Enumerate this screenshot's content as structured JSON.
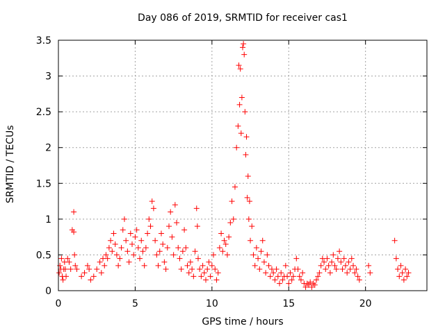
{
  "chart_data": {
    "type": "scatter",
    "title": "Day 086 of 2019, SRMTID for receiver cas1",
    "xlabel": "GPS time / hours",
    "ylabel": "SRMTID / TECUs",
    "xlim": [
      0,
      24
    ],
    "ylim": [
      0,
      3.5
    ],
    "x_ticks": [
      0,
      5,
      10,
      15,
      20
    ],
    "x_tick_labels": [
      "0",
      "5",
      "10",
      "15",
      "20"
    ],
    "y_ticks": [
      0,
      0.5,
      1,
      1.5,
      2,
      2.5,
      3,
      3.5
    ],
    "y_tick_labels": [
      "0",
      "0.5",
      "1",
      "1.5",
      "2",
      "2.5",
      "3",
      "3.5"
    ],
    "grid": true,
    "marker": "+",
    "series": [
      {
        "name": "SRMTID",
        "color": "#ff0000",
        "points": [
          [
            0.05,
            0.25
          ],
          [
            0.1,
            0.35
          ],
          [
            0.15,
            0.3
          ],
          [
            0.2,
            0.45
          ],
          [
            0.25,
            0.2
          ],
          [
            0.3,
            0.15
          ],
          [
            0.35,
            0.3
          ],
          [
            0.4,
            0.4
          ],
          [
            0.45,
            0.3
          ],
          [
            0.5,
            0.2
          ],
          [
            0.6,
            0.45
          ],
          [
            0.7,
            0.4
          ],
          [
            0.8,
            0.3
          ],
          [
            0.9,
            0.85
          ],
          [
            1.0,
            0.82
          ],
          [
            1.0,
            1.1
          ],
          [
            1.05,
            0.5
          ],
          [
            1.1,
            0.35
          ],
          [
            1.2,
            0.3
          ],
          [
            1.5,
            0.2
          ],
          [
            1.7,
            0.25
          ],
          [
            1.9,
            0.35
          ],
          [
            2.0,
            0.3
          ],
          [
            2.1,
            0.15
          ],
          [
            2.3,
            0.2
          ],
          [
            2.5,
            0.3
          ],
          [
            2.7,
            0.4
          ],
          [
            2.8,
            0.25
          ],
          [
            2.9,
            0.45
          ],
          [
            3.0,
            0.35
          ],
          [
            3.1,
            0.5
          ],
          [
            3.2,
            0.45
          ],
          [
            3.3,
            0.6
          ],
          [
            3.4,
            0.7
          ],
          [
            3.5,
            0.55
          ],
          [
            3.6,
            0.8
          ],
          [
            3.7,
            0.65
          ],
          [
            3.8,
            0.5
          ],
          [
            3.9,
            0.35
          ],
          [
            4.0,
            0.45
          ],
          [
            4.1,
            0.6
          ],
          [
            4.2,
            0.85
          ],
          [
            4.3,
            1.0
          ],
          [
            4.4,
            0.7
          ],
          [
            4.5,
            0.55
          ],
          [
            4.6,
            0.4
          ],
          [
            4.7,
            0.8
          ],
          [
            4.8,
            0.65
          ],
          [
            4.9,
            0.5
          ],
          [
            5.0,
            0.75
          ],
          [
            5.1,
            0.85
          ],
          [
            5.2,
            0.6
          ],
          [
            5.3,
            0.45
          ],
          [
            5.4,
            0.7
          ],
          [
            5.5,
            0.55
          ],
          [
            5.6,
            0.35
          ],
          [
            5.7,
            0.6
          ],
          [
            5.8,
            0.8
          ],
          [
            5.9,
            1.0
          ],
          [
            6.0,
            0.9
          ],
          [
            6.1,
            1.25
          ],
          [
            6.2,
            1.15
          ],
          [
            6.3,
            0.7
          ],
          [
            6.4,
            0.5
          ],
          [
            6.5,
            0.35
          ],
          [
            6.6,
            0.55
          ],
          [
            6.7,
            0.8
          ],
          [
            6.8,
            0.65
          ],
          [
            6.9,
            0.4
          ],
          [
            7.0,
            0.3
          ],
          [
            7.1,
            0.6
          ],
          [
            7.2,
            0.9
          ],
          [
            7.3,
            1.1
          ],
          [
            7.4,
            0.75
          ],
          [
            7.5,
            0.5
          ],
          [
            7.6,
            1.2
          ],
          [
            7.7,
            0.95
          ],
          [
            7.8,
            0.6
          ],
          [
            7.9,
            0.45
          ],
          [
            8.0,
            0.3
          ],
          [
            8.1,
            0.55
          ],
          [
            8.2,
            0.85
          ],
          [
            8.3,
            0.6
          ],
          [
            8.4,
            0.35
          ],
          [
            8.5,
            0.25
          ],
          [
            8.6,
            0.4
          ],
          [
            8.7,
            0.3
          ],
          [
            8.8,
            0.2
          ],
          [
            8.9,
            0.55
          ],
          [
            9.0,
            1.15
          ],
          [
            9.05,
            0.9
          ],
          [
            9.1,
            0.45
          ],
          [
            9.2,
            0.3
          ],
          [
            9.3,
            0.2
          ],
          [
            9.4,
            0.35
          ],
          [
            9.5,
            0.25
          ],
          [
            9.6,
            0.15
          ],
          [
            9.7,
            0.3
          ],
          [
            9.8,
            0.4
          ],
          [
            9.9,
            0.2
          ],
          [
            10.0,
            0.35
          ],
          [
            10.1,
            0.5
          ],
          [
            10.2,
            0.3
          ],
          [
            10.3,
            0.15
          ],
          [
            10.4,
            0.25
          ],
          [
            10.5,
            0.6
          ],
          [
            10.6,
            0.8
          ],
          [
            10.7,
            0.55
          ],
          [
            10.8,
            0.7
          ],
          [
            10.9,
            0.65
          ],
          [
            11.0,
            0.5
          ],
          [
            11.1,
            0.75
          ],
          [
            11.2,
            0.95
          ],
          [
            11.3,
            1.25
          ],
          [
            11.4,
            1.0
          ],
          [
            11.5,
            1.45
          ],
          [
            11.6,
            2.0
          ],
          [
            11.7,
            2.3
          ],
          [
            11.75,
            3.15
          ],
          [
            11.8,
            2.6
          ],
          [
            11.85,
            3.1
          ],
          [
            11.9,
            2.2
          ],
          [
            11.95,
            2.7
          ],
          [
            12.0,
            3.4
          ],
          [
            12.05,
            3.45
          ],
          [
            12.1,
            3.3
          ],
          [
            12.15,
            2.5
          ],
          [
            12.2,
            1.9
          ],
          [
            12.25,
            2.15
          ],
          [
            12.3,
            1.3
          ],
          [
            12.35,
            1.6
          ],
          [
            12.4,
            1.0
          ],
          [
            12.45,
            1.25
          ],
          [
            12.5,
            0.7
          ],
          [
            12.6,
            0.9
          ],
          [
            12.7,
            0.5
          ],
          [
            12.8,
            0.35
          ],
          [
            12.9,
            0.6
          ],
          [
            13.0,
            0.45
          ],
          [
            13.1,
            0.3
          ],
          [
            13.2,
            0.55
          ],
          [
            13.3,
            0.7
          ],
          [
            13.4,
            0.4
          ],
          [
            13.5,
            0.25
          ],
          [
            13.6,
            0.5
          ],
          [
            13.7,
            0.35
          ],
          [
            13.8,
            0.2
          ],
          [
            13.9,
            0.3
          ],
          [
            14.0,
            0.25
          ],
          [
            14.1,
            0.15
          ],
          [
            14.2,
            0.3
          ],
          [
            14.3,
            0.2
          ],
          [
            14.4,
            0.1
          ],
          [
            14.5,
            0.25
          ],
          [
            14.6,
            0.15
          ],
          [
            14.7,
            0.2
          ],
          [
            14.8,
            0.35
          ],
          [
            14.9,
            0.2
          ],
          [
            15.0,
            0.1
          ],
          [
            15.1,
            0.25
          ],
          [
            15.2,
            0.15
          ],
          [
            15.3,
            0.2
          ],
          [
            15.4,
            0.3
          ],
          [
            15.5,
            0.45
          ],
          [
            15.6,
            0.3
          ],
          [
            15.7,
            0.2
          ],
          [
            15.8,
            0.15
          ],
          [
            15.9,
            0.25
          ],
          [
            16.0,
            0.1
          ],
          [
            16.1,
            0.05
          ],
          [
            16.2,
            0.1
          ],
          [
            16.3,
            0.08
          ],
          [
            16.4,
            0.12
          ],
          [
            16.5,
            0.05
          ],
          [
            16.6,
            0.1
          ],
          [
            16.7,
            0.08
          ],
          [
            16.8,
            0.15
          ],
          [
            16.9,
            0.2
          ],
          [
            17.0,
            0.25
          ],
          [
            17.1,
            0.35
          ],
          [
            17.2,
            0.45
          ],
          [
            17.3,
            0.4
          ],
          [
            17.4,
            0.3
          ],
          [
            17.5,
            0.45
          ],
          [
            17.6,
            0.35
          ],
          [
            17.7,
            0.25
          ],
          [
            17.8,
            0.4
          ],
          [
            17.9,
            0.5
          ],
          [
            18.0,
            0.35
          ],
          [
            18.1,
            0.3
          ],
          [
            18.2,
            0.45
          ],
          [
            18.3,
            0.55
          ],
          [
            18.4,
            0.4
          ],
          [
            18.5,
            0.3
          ],
          [
            18.6,
            0.45
          ],
          [
            18.7,
            0.35
          ],
          [
            18.8,
            0.25
          ],
          [
            18.9,
            0.4
          ],
          [
            19.0,
            0.3
          ],
          [
            19.1,
            0.45
          ],
          [
            19.2,
            0.35
          ],
          [
            19.3,
            0.25
          ],
          [
            19.4,
            0.3
          ],
          [
            19.5,
            0.2
          ],
          [
            19.6,
            0.15
          ],
          [
            20.2,
            0.35
          ],
          [
            20.3,
            0.25
          ],
          [
            21.9,
            0.7
          ],
          [
            22.0,
            0.45
          ],
          [
            22.1,
            0.3
          ],
          [
            22.2,
            0.2
          ],
          [
            22.3,
            0.35
          ],
          [
            22.4,
            0.25
          ],
          [
            22.5,
            0.15
          ],
          [
            22.6,
            0.3
          ],
          [
            22.7,
            0.2
          ],
          [
            22.8,
            0.25
          ]
        ]
      }
    ]
  }
}
